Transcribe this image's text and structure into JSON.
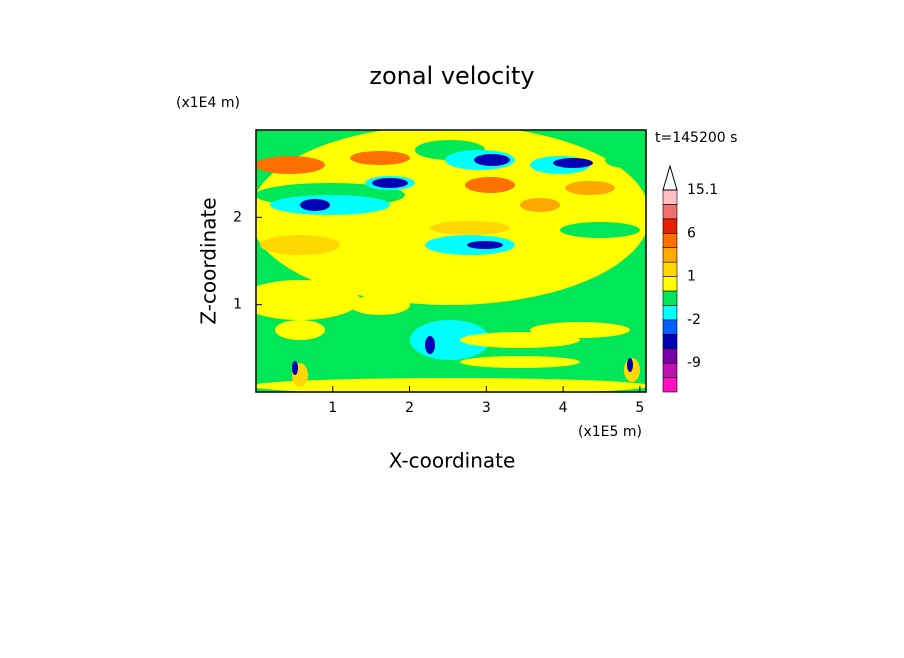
{
  "chart_data": {
    "type": "contour",
    "title": "zonal velocity",
    "xlabel": "X-coordinate",
    "ylabel": "Z-coordinate",
    "x_unit_label": "(x1E5 m)",
    "y_unit_label": "(x1E4 m)",
    "annotation": "t=145200 s",
    "xlim": [
      0,
      5.08
    ],
    "ylim": [
      0,
      3
    ],
    "xticks": [
      1,
      2,
      3,
      4,
      5
    ],
    "yticks": [
      1,
      2
    ],
    "levels": [
      -15,
      -12,
      -9,
      -6,
      -3,
      -2,
      -1,
      0,
      1,
      2,
      3,
      6,
      9,
      12,
      15.1
    ],
    "colors": [
      "#ff10c0",
      "#c010b0",
      "#7a00a8",
      "#0000b4",
      "#0060ff",
      "#00ffff",
      "#00e858",
      "#ffff00",
      "#ffd800",
      "#ffa800",
      "#ff7000",
      "#e82000",
      "#f07070",
      "#ffc0c0"
    ],
    "colorbar_ticks": [
      -9,
      -2,
      1,
      6,
      15.1
    ]
  }
}
